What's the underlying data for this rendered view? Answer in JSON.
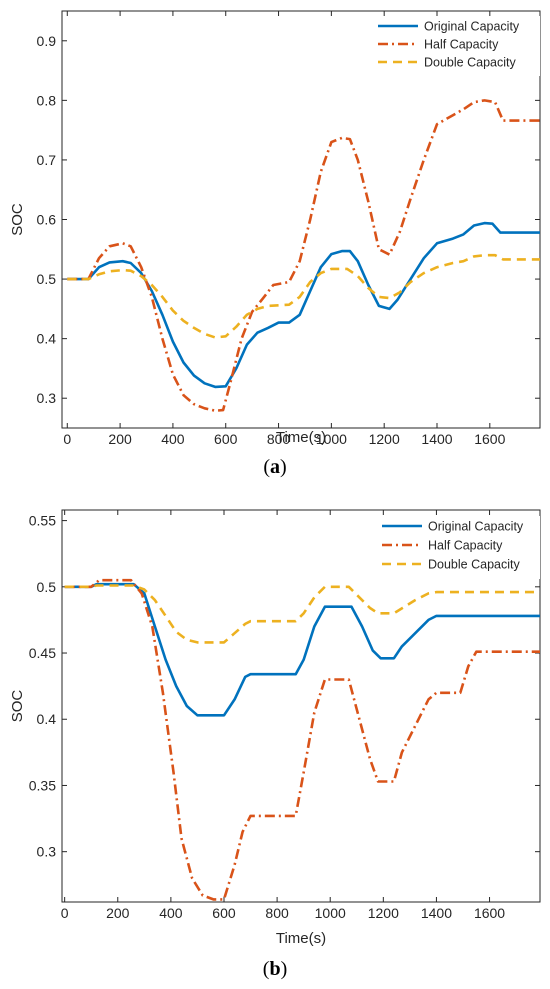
{
  "chart_data": [
    {
      "type": "line",
      "panel": "(a)",
      "panel_letter": "a",
      "xlabel": "Time(s)",
      "ylabel": "SOC",
      "xlim": [
        -20,
        1790
      ],
      "ylim": [
        0.25,
        0.95
      ],
      "xticks": [
        0,
        200,
        400,
        600,
        800,
        1000,
        1200,
        1400,
        1600
      ],
      "yticks": [
        0.3,
        0.4,
        0.5,
        0.6,
        0.7,
        0.8,
        0.9
      ],
      "ytick_labels": [
        "0.3",
        "0.4",
        "0.5",
        "0.6",
        "0.7",
        "0.8",
        "0.9"
      ],
      "grid": false,
      "legend_position": "top-right",
      "series": [
        {
          "name": "Original Capacity",
          "color": "#0072BD",
          "style": "solid",
          "points": [
            [
              0,
              0.5
            ],
            [
              80,
              0.5
            ],
            [
              120,
              0.52
            ],
            [
              160,
              0.528
            ],
            [
              210,
              0.53
            ],
            [
              240,
              0.527
            ],
            [
              280,
              0.51
            ],
            [
              320,
              0.48
            ],
            [
              360,
              0.44
            ],
            [
              400,
              0.395
            ],
            [
              440,
              0.36
            ],
            [
              480,
              0.338
            ],
            [
              520,
              0.325
            ],
            [
              560,
              0.319
            ],
            [
              600,
              0.32
            ],
            [
              640,
              0.35
            ],
            [
              680,
              0.39
            ],
            [
              720,
              0.41
            ],
            [
              760,
              0.418
            ],
            [
              800,
              0.427
            ],
            [
              840,
              0.427
            ],
            [
              880,
              0.44
            ],
            [
              920,
              0.48
            ],
            [
              960,
              0.52
            ],
            [
              1000,
              0.542
            ],
            [
              1040,
              0.547
            ],
            [
              1070,
              0.547
            ],
            [
              1100,
              0.53
            ],
            [
              1140,
              0.49
            ],
            [
              1180,
              0.455
            ],
            [
              1220,
              0.45
            ],
            [
              1250,
              0.465
            ],
            [
              1300,
              0.5
            ],
            [
              1350,
              0.535
            ],
            [
              1400,
              0.56
            ],
            [
              1460,
              0.568
            ],
            [
              1500,
              0.575
            ],
            [
              1540,
              0.59
            ],
            [
              1580,
              0.594
            ],
            [
              1610,
              0.593
            ],
            [
              1640,
              0.578
            ],
            [
              1790,
              0.578
            ]
          ]
        },
        {
          "name": "Half Capacity",
          "color": "#D95319",
          "style": "dashdot",
          "points": [
            [
              0,
              0.5
            ],
            [
              80,
              0.5
            ],
            [
              120,
              0.535
            ],
            [
              160,
              0.555
            ],
            [
              210,
              0.56
            ],
            [
              240,
              0.555
            ],
            [
              280,
              0.52
            ],
            [
              320,
              0.47
            ],
            [
              360,
              0.4
            ],
            [
              400,
              0.34
            ],
            [
              440,
              0.305
            ],
            [
              480,
              0.29
            ],
            [
              520,
              0.283
            ],
            [
              560,
              0.279
            ],
            [
              590,
              0.28
            ],
            [
              620,
              0.33
            ],
            [
              660,
              0.4
            ],
            [
              700,
              0.445
            ],
            [
              740,
              0.467
            ],
            [
              780,
              0.49
            ],
            [
              840,
              0.495
            ],
            [
              880,
              0.53
            ],
            [
              920,
              0.6
            ],
            [
              960,
              0.68
            ],
            [
              1000,
              0.73
            ],
            [
              1040,
              0.737
            ],
            [
              1070,
              0.735
            ],
            [
              1100,
              0.7
            ],
            [
              1140,
              0.63
            ],
            [
              1180,
              0.55
            ],
            [
              1220,
              0.541
            ],
            [
              1260,
              0.58
            ],
            [
              1300,
              0.635
            ],
            [
              1350,
              0.7
            ],
            [
              1400,
              0.76
            ],
            [
              1460,
              0.775
            ],
            [
              1500,
              0.785
            ],
            [
              1540,
              0.797
            ],
            [
              1580,
              0.8
            ],
            [
              1620,
              0.797
            ],
            [
              1650,
              0.766
            ],
            [
              1790,
              0.766
            ]
          ]
        },
        {
          "name": "Double Capacity",
          "color": "#EDB120",
          "style": "dashed",
          "points": [
            [
              0,
              0.5
            ],
            [
              80,
              0.5
            ],
            [
              120,
              0.508
            ],
            [
              160,
              0.513
            ],
            [
              210,
              0.515
            ],
            [
              240,
              0.514
            ],
            [
              280,
              0.505
            ],
            [
              320,
              0.49
            ],
            [
              360,
              0.47
            ],
            [
              400,
              0.447
            ],
            [
              440,
              0.43
            ],
            [
              480,
              0.418
            ],
            [
              520,
              0.408
            ],
            [
              560,
              0.402
            ],
            [
              600,
              0.404
            ],
            [
              640,
              0.42
            ],
            [
              680,
              0.44
            ],
            [
              720,
              0.45
            ],
            [
              760,
              0.455
            ],
            [
              840,
              0.457
            ],
            [
              880,
              0.47
            ],
            [
              920,
              0.495
            ],
            [
              960,
              0.51
            ],
            [
              1000,
              0.517
            ],
            [
              1060,
              0.517
            ],
            [
              1100,
              0.505
            ],
            [
              1140,
              0.485
            ],
            [
              1180,
              0.47
            ],
            [
              1220,
              0.468
            ],
            [
              1260,
              0.478
            ],
            [
              1300,
              0.495
            ],
            [
              1350,
              0.51
            ],
            [
              1400,
              0.52
            ],
            [
              1460,
              0.527
            ],
            [
              1500,
              0.53
            ],
            [
              1540,
              0.538
            ],
            [
              1580,
              0.54
            ],
            [
              1620,
              0.54
            ],
            [
              1650,
              0.533
            ],
            [
              1790,
              0.533
            ]
          ]
        }
      ]
    },
    {
      "type": "line",
      "panel": "(b)",
      "panel_letter": "b",
      "xlabel": "Time(s)",
      "ylabel": "SOC",
      "xlim": [
        -10,
        1790
      ],
      "ylim": [
        0.262,
        0.558
      ],
      "xticks": [
        0,
        200,
        400,
        600,
        800,
        1000,
        1200,
        1400,
        1600
      ],
      "yticks": [
        0.3,
        0.35,
        0.4,
        0.45,
        0.5,
        0.55
      ],
      "ytick_labels": [
        "0.3",
        "0.35",
        "0.4",
        "0.45",
        "0.5",
        "0.55"
      ],
      "grid": false,
      "legend_position": "top-right",
      "series": [
        {
          "name": "Original Capacity",
          "color": "#0072BD",
          "style": "solid",
          "points": [
            [
              0,
              0.5
            ],
            [
              100,
              0.5
            ],
            [
              120,
              0.502
            ],
            [
              260,
              0.502
            ],
            [
              300,
              0.495
            ],
            [
              340,
              0.47
            ],
            [
              380,
              0.445
            ],
            [
              420,
              0.425
            ],
            [
              460,
              0.41
            ],
            [
              500,
              0.403
            ],
            [
              600,
              0.403
            ],
            [
              640,
              0.415
            ],
            [
              680,
              0.432
            ],
            [
              700,
              0.434
            ],
            [
              870,
              0.434
            ],
            [
              900,
              0.445
            ],
            [
              940,
              0.47
            ],
            [
              980,
              0.485
            ],
            [
              1080,
              0.485
            ],
            [
              1120,
              0.47
            ],
            [
              1160,
              0.452
            ],
            [
              1190,
              0.446
            ],
            [
              1240,
              0.446
            ],
            [
              1270,
              0.455
            ],
            [
              1320,
              0.465
            ],
            [
              1370,
              0.475
            ],
            [
              1400,
              0.478
            ],
            [
              1790,
              0.478
            ]
          ]
        },
        {
          "name": "Half Capacity",
          "color": "#D95319",
          "style": "dashdot",
          "points": [
            [
              0,
              0.5
            ],
            [
              100,
              0.5
            ],
            [
              130,
              0.505
            ],
            [
              250,
              0.505
            ],
            [
              290,
              0.495
            ],
            [
              330,
              0.47
            ],
            [
              370,
              0.42
            ],
            [
              410,
              0.36
            ],
            [
              440,
              0.31
            ],
            [
              480,
              0.28
            ],
            [
              520,
              0.267
            ],
            [
              560,
              0.264
            ],
            [
              600,
              0.264
            ],
            [
              640,
              0.29
            ],
            [
              670,
              0.315
            ],
            [
              700,
              0.327
            ],
            [
              870,
              0.327
            ],
            [
              900,
              0.36
            ],
            [
              940,
              0.405
            ],
            [
              980,
              0.43
            ],
            [
              1070,
              0.43
            ],
            [
              1110,
              0.4
            ],
            [
              1150,
              0.37
            ],
            [
              1180,
              0.353
            ],
            [
              1240,
              0.353
            ],
            [
              1270,
              0.375
            ],
            [
              1320,
              0.395
            ],
            [
              1370,
              0.415
            ],
            [
              1400,
              0.42
            ],
            [
              1490,
              0.42
            ],
            [
              1520,
              0.44
            ],
            [
              1550,
              0.451
            ],
            [
              1790,
              0.451
            ]
          ]
        },
        {
          "name": "Double Capacity",
          "color": "#EDB120",
          "style": "dashed",
          "points": [
            [
              0,
              0.5
            ],
            [
              100,
              0.5
            ],
            [
              120,
              0.501
            ],
            [
              260,
              0.501
            ],
            [
              300,
              0.498
            ],
            [
              340,
              0.49
            ],
            [
              380,
              0.478
            ],
            [
              420,
              0.466
            ],
            [
              460,
              0.46
            ],
            [
              500,
              0.458
            ],
            [
              600,
              0.458
            ],
            [
              640,
              0.465
            ],
            [
              680,
              0.472
            ],
            [
              700,
              0.474
            ],
            [
              870,
              0.474
            ],
            [
              900,
              0.48
            ],
            [
              940,
              0.492
            ],
            [
              980,
              0.5
            ],
            [
              1070,
              0.5
            ],
            [
              1110,
              0.492
            ],
            [
              1150,
              0.484
            ],
            [
              1180,
              0.48
            ],
            [
              1240,
              0.48
            ],
            [
              1280,
              0.485
            ],
            [
              1320,
              0.49
            ],
            [
              1370,
              0.495
            ],
            [
              1400,
              0.496
            ],
            [
              1790,
              0.496
            ]
          ]
        }
      ]
    }
  ]
}
